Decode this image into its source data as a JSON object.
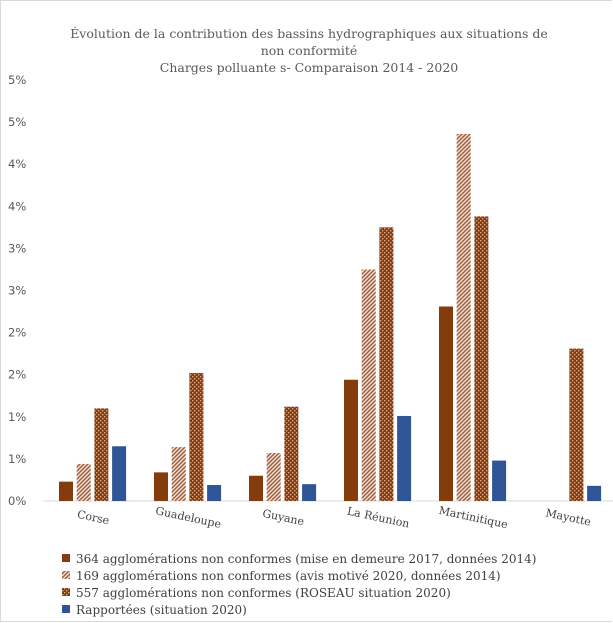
{
  "chart_data": {
    "type": "bar",
    "title_lines": [
      "Évolution de la contribution des bassins hydrographiques aux situations de",
      "non conformité",
      "Charges polluante s- Comparaison 2014 - 2020"
    ],
    "categories": [
      "Corse",
      "Guadeloupe",
      "Guyane",
      "La Réunion",
      "Martinitique",
      "Mayotte"
    ],
    "y_tick_labels": [
      "0%",
      "1%",
      "1%",
      "2%",
      "2%",
      "3%",
      "3%",
      "4%",
      "4%",
      "5%",
      "5%"
    ],
    "ylim": [
      0,
      5
    ],
    "grid": false,
    "legend_position": "bottom",
    "series": [
      {
        "name": "364 agglomérations non conformes (mise en demeure 2017, données 2014)",
        "values": [
          0.23,
          0.34,
          0.3,
          1.44,
          2.31,
          0
        ],
        "color": "#843c0c",
        "pattern": "solid"
      },
      {
        "name": "169 agglomérations non conformes (avis motivé 2020, données 2014)",
        "values": [
          0.44,
          0.64,
          0.57,
          2.75,
          4.36,
          0
        ],
        "color": "#c9a08a",
        "pattern": "diagonal"
      },
      {
        "name": "557 agglomérations non conformes (ROSEAU situation 2020)",
        "values": [
          1.1,
          1.52,
          1.12,
          3.25,
          3.38,
          1.81
        ],
        "color": "#843c0c",
        "pattern": "checker"
      },
      {
        "name": "Rapportées (situation 2020)",
        "values": [
          0.65,
          0.19,
          0.2,
          1.01,
          0.48,
          0.18
        ],
        "color": "#2f5597",
        "pattern": "solid"
      }
    ]
  }
}
